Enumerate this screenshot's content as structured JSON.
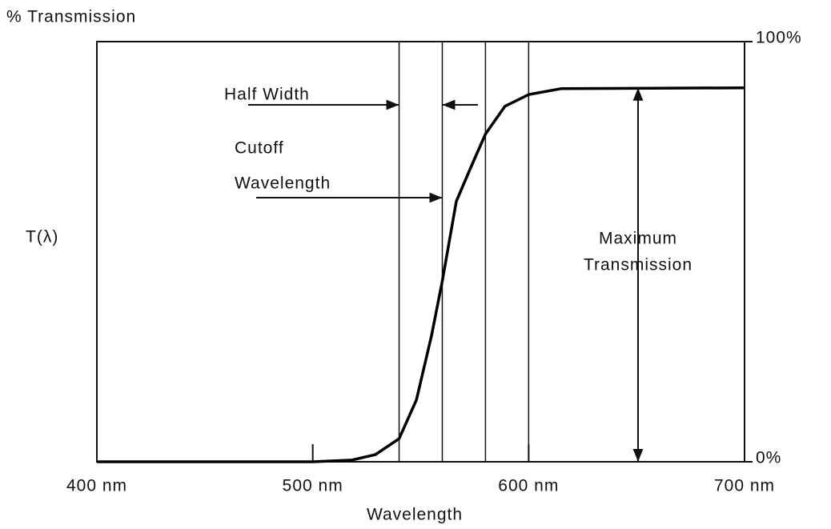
{
  "chart_data": {
    "type": "line",
    "title": "% Transmission",
    "y_label": "T(λ)",
    "x_label": "Wavelength",
    "x": [
      400,
      500,
      518,
      529,
      540,
      548,
      555,
      560,
      566.5,
      574,
      580,
      589,
      600,
      615,
      700
    ],
    "values": [
      0,
      0,
      0.4,
      1.7,
      5.5,
      14.7,
      30,
      43,
      62,
      71,
      78,
      84.6,
      87.4,
      88.8,
      89
    ],
    "color": "#000000",
    "xlim": [
      400,
      700
    ],
    "xticks": [
      {
        "value": 400,
        "label": "400 nm"
      },
      {
        "value": 500,
        "label": "500 nm"
      },
      {
        "value": 600,
        "label": "600 nm"
      },
      {
        "value": 700,
        "label": "700 nm"
      }
    ],
    "ylim": [
      0,
      100
    ],
    "yticks": [
      {
        "value": 0,
        "label": "0%"
      },
      {
        "value": 100,
        "label": "100%"
      }
    ],
    "reference_lines": [
      540,
      560,
      580,
      600
    ],
    "annotations": {
      "half_width": "Half Width",
      "cutoff": [
        "Cutoff",
        "Wavelength"
      ],
      "maximum": [
        "Maximum",
        "Transmission"
      ]
    }
  }
}
